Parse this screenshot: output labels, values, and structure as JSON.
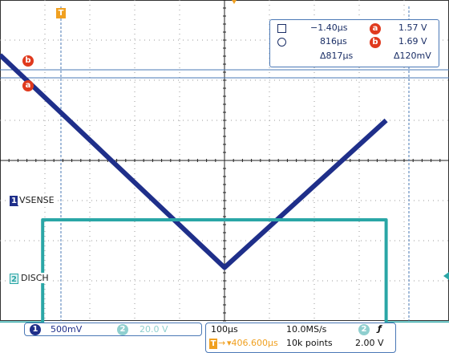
{
  "trigger_marker": "T",
  "cursor_readout": {
    "cursor_a_time": "−1.40µs",
    "cursor_b_time": "816µs",
    "delta_time": "Δ817µs",
    "cursor_a_volt": "1.57 V",
    "cursor_b_volt": "1.69 V",
    "delta_volt": "Δ120mV",
    "badge_a": "a",
    "badge_b": "b"
  },
  "level_markers": {
    "b": "b",
    "a": "a"
  },
  "channels": [
    {
      "number": "1",
      "label": "VSENSE",
      "scale": "500mV",
      "color": "#1f2f8a"
    },
    {
      "number": "2",
      "label": "DISCH",
      "scale": "20.0 V",
      "color": "#2aa6a6"
    }
  ],
  "timebase": {
    "time_per_div": "100µs",
    "sample_rate": "10.0MS/s",
    "trigger_position": "▾406.600µs",
    "record_length": "10k points"
  },
  "trigger": {
    "source": "2",
    "slope": "ƒ",
    "level": "2.00 V"
  },
  "colors": {
    "accent": "#f0a020",
    "cursor_red": "#e03a1e",
    "grid": "#9a9a9a",
    "border": "#4a78b6"
  },
  "chart_data": {
    "type": "line",
    "title": "",
    "xlabel": "",
    "ylabel": "",
    "divisions": {
      "x": 10,
      "y": 8
    },
    "series": [
      {
        "name": "VSENSE",
        "points": [
          [
            0,
            2.63
          ],
          [
            5.0,
            -2.67
          ],
          [
            8.6,
            1.0
          ]
        ]
      },
      {
        "name": "DISCH",
        "points": [
          [
            0,
            -4.05
          ],
          [
            0.95,
            -4.05
          ],
          [
            0.95,
            -1.48
          ],
          [
            8.6,
            -1.48
          ],
          [
            8.6,
            -4.05
          ],
          [
            10,
            -4.05
          ]
        ]
      }
    ]
  }
}
